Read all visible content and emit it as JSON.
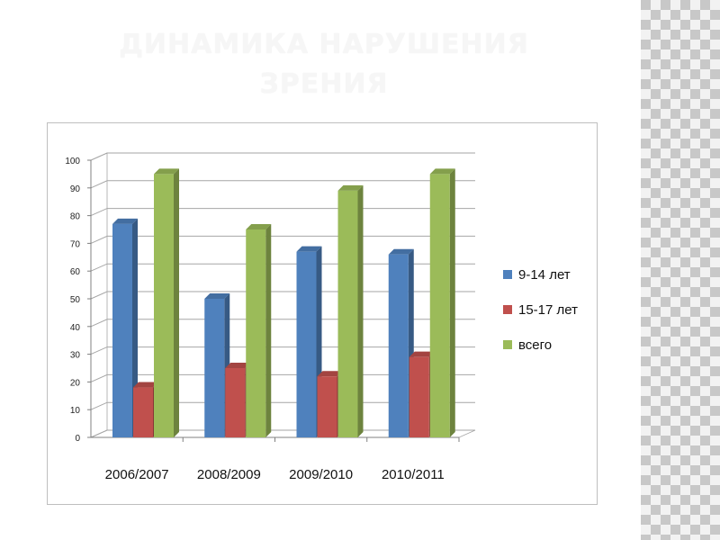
{
  "slide": {
    "title_line1": "ДИНАМИКА НАРУШЕНИЯ",
    "title_line2": "ЗРЕНИЯ"
  },
  "colors": {
    "series_1": "#4f81bd",
    "series_2": "#c0504d",
    "series_3": "#9bbb59",
    "grid": "#a6a6a6"
  },
  "chart_data": {
    "type": "bar",
    "categories": [
      "2006/2007",
      "2008/2009",
      "2009/2010",
      "2010/2011"
    ],
    "series": [
      {
        "name": "9-14 лет",
        "values": [
          77,
          50,
          67,
          66
        ]
      },
      {
        "name": "15-17 лет",
        "values": [
          18,
          25,
          22,
          29
        ]
      },
      {
        "name": "всего",
        "values": [
          95,
          75,
          89,
          95
        ]
      }
    ],
    "yticks": [
      "0",
      "10",
      "20",
      "30",
      "40",
      "50",
      "60",
      "70",
      "80",
      "90",
      "100"
    ],
    "ylim": [
      0,
      100
    ],
    "grid": true,
    "legend_position": "right",
    "style": "3d-clustered"
  }
}
